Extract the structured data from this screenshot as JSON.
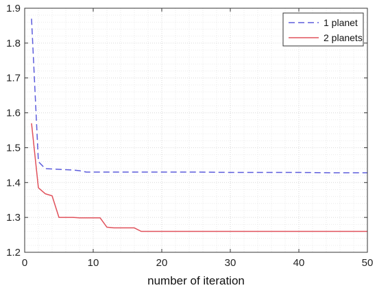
{
  "chart_data": {
    "type": "line",
    "xlabel": "number of iteration",
    "ylabel": "",
    "xlim": [
      0,
      50
    ],
    "ylim": [
      1.2,
      1.9
    ],
    "xticks": [
      0,
      10,
      20,
      30,
      40,
      50
    ],
    "yticks": [
      1.2,
      1.3,
      1.4,
      1.5,
      1.6,
      1.7,
      1.8,
      1.9
    ],
    "grid": "major and minor, dotted",
    "legend_position": "top-right",
    "series": [
      {
        "name": "1 planet",
        "color": "#5b5bdc",
        "style": "dashed",
        "x": [
          1,
          2,
          3,
          4,
          5,
          6,
          7,
          8,
          9,
          10,
          15,
          20,
          25,
          30,
          35,
          40,
          45,
          50
        ],
        "y": [
          1.87,
          1.46,
          1.44,
          1.439,
          1.438,
          1.437,
          1.436,
          1.434,
          1.43,
          1.43,
          1.43,
          1.43,
          1.43,
          1.429,
          1.429,
          1.429,
          1.428,
          1.428
        ]
      },
      {
        "name": "2 planets",
        "color": "#e0505a",
        "style": "solid",
        "x": [
          1,
          2,
          3,
          4,
          5,
          6,
          7,
          8,
          9,
          10,
          11,
          12,
          13,
          14,
          15,
          16,
          17,
          18,
          20,
          30,
          40,
          50
        ],
        "y": [
          1.57,
          1.385,
          1.368,
          1.362,
          1.3,
          1.3,
          1.3,
          1.299,
          1.299,
          1.299,
          1.299,
          1.272,
          1.27,
          1.27,
          1.27,
          1.27,
          1.26,
          1.26,
          1.26,
          1.26,
          1.26,
          1.26
        ]
      }
    ]
  }
}
